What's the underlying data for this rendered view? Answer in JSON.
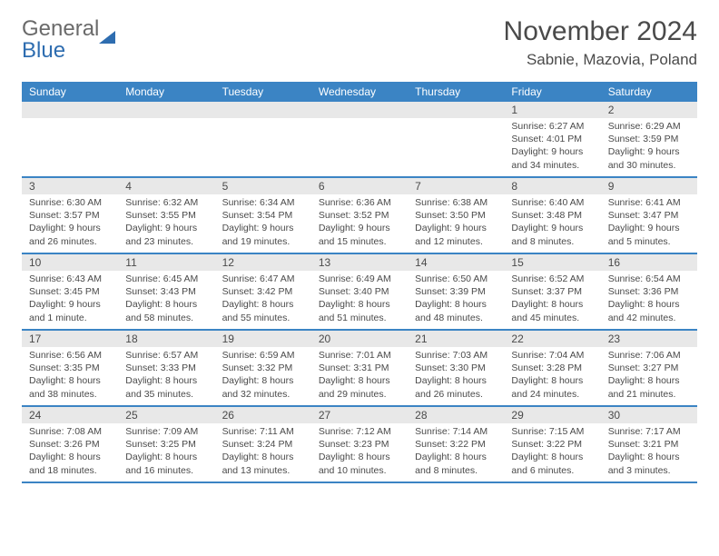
{
  "brand": {
    "name1": "General",
    "name2": "Blue"
  },
  "title": "November 2024",
  "location": "Sabnie, Mazovia, Poland",
  "colors": {
    "header_bg": "#3b84c4",
    "header_text": "#ffffff",
    "row_border": "#3b84c4",
    "daynum_bg": "#e8e8e8",
    "text": "#4a4a4a",
    "brand_gray": "#6a6a6a",
    "brand_blue": "#2e6db0",
    "page_bg": "#ffffff"
  },
  "weekdays": [
    "Sunday",
    "Monday",
    "Tuesday",
    "Wednesday",
    "Thursday",
    "Friday",
    "Saturday"
  ],
  "weeks": [
    [
      null,
      null,
      null,
      null,
      null,
      {
        "n": "1",
        "sunrise": "6:27 AM",
        "sunset": "4:01 PM",
        "daylight": "9 hours and 34 minutes."
      },
      {
        "n": "2",
        "sunrise": "6:29 AM",
        "sunset": "3:59 PM",
        "daylight": "9 hours and 30 minutes."
      }
    ],
    [
      {
        "n": "3",
        "sunrise": "6:30 AM",
        "sunset": "3:57 PM",
        "daylight": "9 hours and 26 minutes."
      },
      {
        "n": "4",
        "sunrise": "6:32 AM",
        "sunset": "3:55 PM",
        "daylight": "9 hours and 23 minutes."
      },
      {
        "n": "5",
        "sunrise": "6:34 AM",
        "sunset": "3:54 PM",
        "daylight": "9 hours and 19 minutes."
      },
      {
        "n": "6",
        "sunrise": "6:36 AM",
        "sunset": "3:52 PM",
        "daylight": "9 hours and 15 minutes."
      },
      {
        "n": "7",
        "sunrise": "6:38 AM",
        "sunset": "3:50 PM",
        "daylight": "9 hours and 12 minutes."
      },
      {
        "n": "8",
        "sunrise": "6:40 AM",
        "sunset": "3:48 PM",
        "daylight": "9 hours and 8 minutes."
      },
      {
        "n": "9",
        "sunrise": "6:41 AM",
        "sunset": "3:47 PM",
        "daylight": "9 hours and 5 minutes."
      }
    ],
    [
      {
        "n": "10",
        "sunrise": "6:43 AM",
        "sunset": "3:45 PM",
        "daylight": "9 hours and 1 minute."
      },
      {
        "n": "11",
        "sunrise": "6:45 AM",
        "sunset": "3:43 PM",
        "daylight": "8 hours and 58 minutes."
      },
      {
        "n": "12",
        "sunrise": "6:47 AM",
        "sunset": "3:42 PM",
        "daylight": "8 hours and 55 minutes."
      },
      {
        "n": "13",
        "sunrise": "6:49 AM",
        "sunset": "3:40 PM",
        "daylight": "8 hours and 51 minutes."
      },
      {
        "n": "14",
        "sunrise": "6:50 AM",
        "sunset": "3:39 PM",
        "daylight": "8 hours and 48 minutes."
      },
      {
        "n": "15",
        "sunrise": "6:52 AM",
        "sunset": "3:37 PM",
        "daylight": "8 hours and 45 minutes."
      },
      {
        "n": "16",
        "sunrise": "6:54 AM",
        "sunset": "3:36 PM",
        "daylight": "8 hours and 42 minutes."
      }
    ],
    [
      {
        "n": "17",
        "sunrise": "6:56 AM",
        "sunset": "3:35 PM",
        "daylight": "8 hours and 38 minutes."
      },
      {
        "n": "18",
        "sunrise": "6:57 AM",
        "sunset": "3:33 PM",
        "daylight": "8 hours and 35 minutes."
      },
      {
        "n": "19",
        "sunrise": "6:59 AM",
        "sunset": "3:32 PM",
        "daylight": "8 hours and 32 minutes."
      },
      {
        "n": "20",
        "sunrise": "7:01 AM",
        "sunset": "3:31 PM",
        "daylight": "8 hours and 29 minutes."
      },
      {
        "n": "21",
        "sunrise": "7:03 AM",
        "sunset": "3:30 PM",
        "daylight": "8 hours and 26 minutes."
      },
      {
        "n": "22",
        "sunrise": "7:04 AM",
        "sunset": "3:28 PM",
        "daylight": "8 hours and 24 minutes."
      },
      {
        "n": "23",
        "sunrise": "7:06 AM",
        "sunset": "3:27 PM",
        "daylight": "8 hours and 21 minutes."
      }
    ],
    [
      {
        "n": "24",
        "sunrise": "7:08 AM",
        "sunset": "3:26 PM",
        "daylight": "8 hours and 18 minutes."
      },
      {
        "n": "25",
        "sunrise": "7:09 AM",
        "sunset": "3:25 PM",
        "daylight": "8 hours and 16 minutes."
      },
      {
        "n": "26",
        "sunrise": "7:11 AM",
        "sunset": "3:24 PM",
        "daylight": "8 hours and 13 minutes."
      },
      {
        "n": "27",
        "sunrise": "7:12 AM",
        "sunset": "3:23 PM",
        "daylight": "8 hours and 10 minutes."
      },
      {
        "n": "28",
        "sunrise": "7:14 AM",
        "sunset": "3:22 PM",
        "daylight": "8 hours and 8 minutes."
      },
      {
        "n": "29",
        "sunrise": "7:15 AM",
        "sunset": "3:22 PM",
        "daylight": "8 hours and 6 minutes."
      },
      {
        "n": "30",
        "sunrise": "7:17 AM",
        "sunset": "3:21 PM",
        "daylight": "8 hours and 3 minutes."
      }
    ]
  ],
  "labels": {
    "sunrise": "Sunrise:",
    "sunset": "Sunset:",
    "daylight": "Daylight:"
  }
}
